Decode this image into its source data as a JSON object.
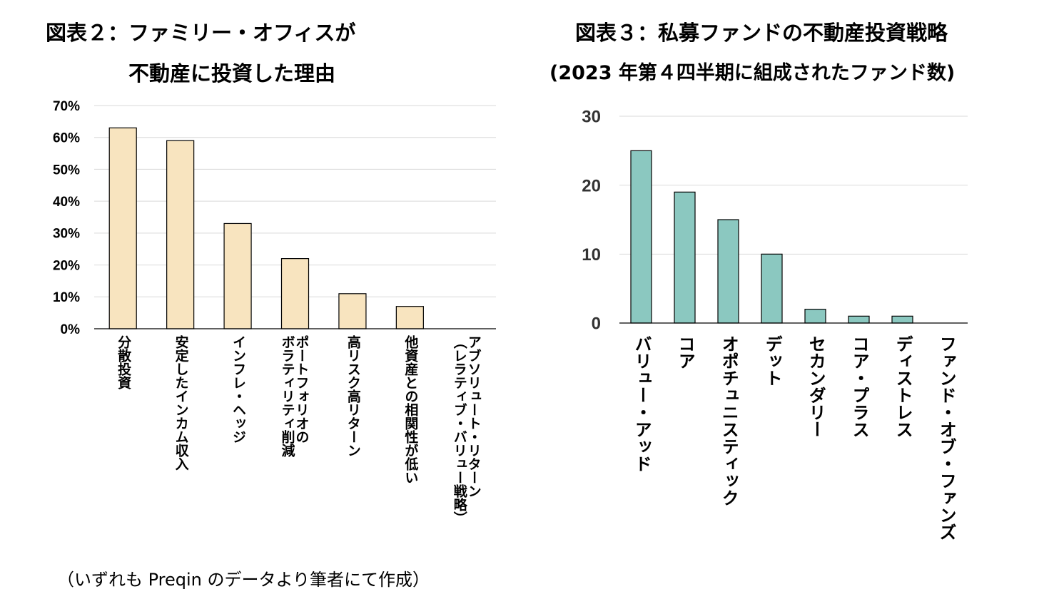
{
  "chart_data": [
    {
      "type": "bar",
      "title": "図表２：ファミリー・オフィスが",
      "subtitle": "不動産に投資した理由",
      "categories": [
        "分散投資",
        "安定したインカム収入",
        "インフレ・ヘッジ",
        "ポートフォリオの|ボラティリティ削減",
        "高リスク高リターン",
        "他資産との相関性が低い",
        "アブソリュート・リターン|（レラティブ・バリュー戦略）"
      ],
      "values": [
        0.63,
        0.59,
        0.33,
        0.22,
        0.11,
        0.07,
        0
      ],
      "ylim": [
        0,
        0.7
      ],
      "yticks": [
        "0%",
        "10%",
        "20%",
        "30%",
        "40%",
        "50%",
        "60%",
        "70%"
      ],
      "bar_color": "#F8E4BF",
      "grid": true
    },
    {
      "type": "bar",
      "title": "図表３：私募ファンドの不動産投資戦略",
      "subtitle": "(2023 年第４四半期に組成されたファンド数)",
      "categories": [
        "バリュー・アッド",
        "コア",
        "オポチュニスティック",
        "デット",
        "セカンダリー",
        "コア・プラス",
        "ディストレス",
        "ファンド・オブ・ファンズ"
      ],
      "values": [
        25,
        19,
        15,
        10,
        2,
        1,
        1,
        0
      ],
      "ylim": [
        0,
        30
      ],
      "yticks": [
        "0",
        "10",
        "20",
        "30"
      ],
      "bar_color": "#8BC8C0",
      "grid": true
    }
  ],
  "footnote": "（いずれも Preqin のデータより筆者にて作成）"
}
